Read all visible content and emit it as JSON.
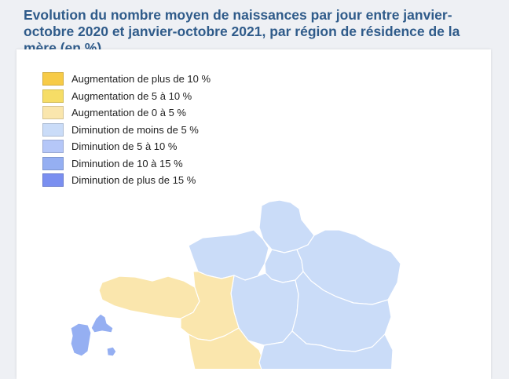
{
  "title": "Evolution du nombre moyen de naissances par jour entre janvier-octobre 2020 et janvier-octobre 2021, par région de résidence de la mère (en %)",
  "legend": [
    {
      "label": "Augmentation de plus de 10 %",
      "color": "#f7cb47"
    },
    {
      "label": "Augmentation de 5 à 10 %",
      "color": "#f6dd66"
    },
    {
      "label": "Augmentation de 0 à 5 %",
      "color": "#fae6ad"
    },
    {
      "label": "Diminution de moins de 5 %",
      "color": "#cadcf8"
    },
    {
      "label": "Diminution de 5 à 10 %",
      "color": "#b5c7f8"
    },
    {
      "label": "Diminution de 10 à 15 %",
      "color": "#95aff2"
    },
    {
      "label": "Diminution de plus de 15 %",
      "color": "#7a8ff0"
    }
  ],
  "regions": [
    {
      "name": "Hauts-de-France",
      "category": "Diminution de moins de 5 %"
    },
    {
      "name": "Normandie",
      "category": "Diminution de moins de 5 %"
    },
    {
      "name": "Île-de-France",
      "category": "Diminution de moins de 5 %"
    },
    {
      "name": "Grand Est",
      "category": "Diminution de moins de 5 %"
    },
    {
      "name": "Centre-Val de Loire",
      "category": "Diminution de moins de 5 %"
    },
    {
      "name": "Bourgogne-Franche-Comté",
      "category": "Diminution de moins de 5 %"
    },
    {
      "name": "Bretagne",
      "category": "Augmentation de 0 à 5 %"
    },
    {
      "name": "Pays de la Loire",
      "category": "Augmentation de 0 à 5 %"
    },
    {
      "name": "Nouvelle-Aquitaine",
      "category": "Augmentation de 0 à 5 %"
    },
    {
      "name": "Guadeloupe",
      "category": "Diminution de 10 à 15 %"
    }
  ]
}
